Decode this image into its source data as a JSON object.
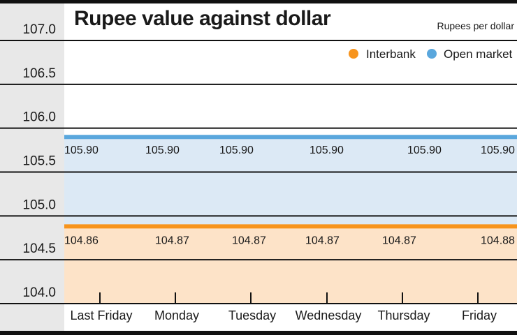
{
  "chart_data": {
    "type": "area",
    "title": "Rupee value against dollar",
    "unit_label": "Rupees per dollar",
    "categories": [
      "Last Friday",
      "Monday",
      "Tuesday",
      "Wednesday",
      "Thursday",
      "Friday"
    ],
    "yticks": [
      "107.0",
      "106.5",
      "106.0",
      "105.5",
      "105.0",
      "104.5",
      "104.0"
    ],
    "ylim": [
      104.0,
      107.0
    ],
    "grid": true,
    "legend_position": "top-right",
    "series": [
      {
        "name": "Interbank",
        "color": "#f7941d",
        "fill": "#fde3c8",
        "values": [
          104.86,
          104.87,
          104.87,
          104.87,
          104.87,
          104.88
        ],
        "labels": [
          "104.86",
          "104.87",
          "104.87",
          "104.87",
          "104.87",
          "104.88"
        ]
      },
      {
        "name": "Open market",
        "color": "#5aa7dd",
        "fill": "#dce9f5",
        "values": [
          105.9,
          105.9,
          105.9,
          105.9,
          105.9,
          105.9
        ],
        "labels": [
          "105.90",
          "105.90",
          "105.90",
          "105.90",
          "105.90",
          "105.90"
        ]
      }
    ]
  }
}
